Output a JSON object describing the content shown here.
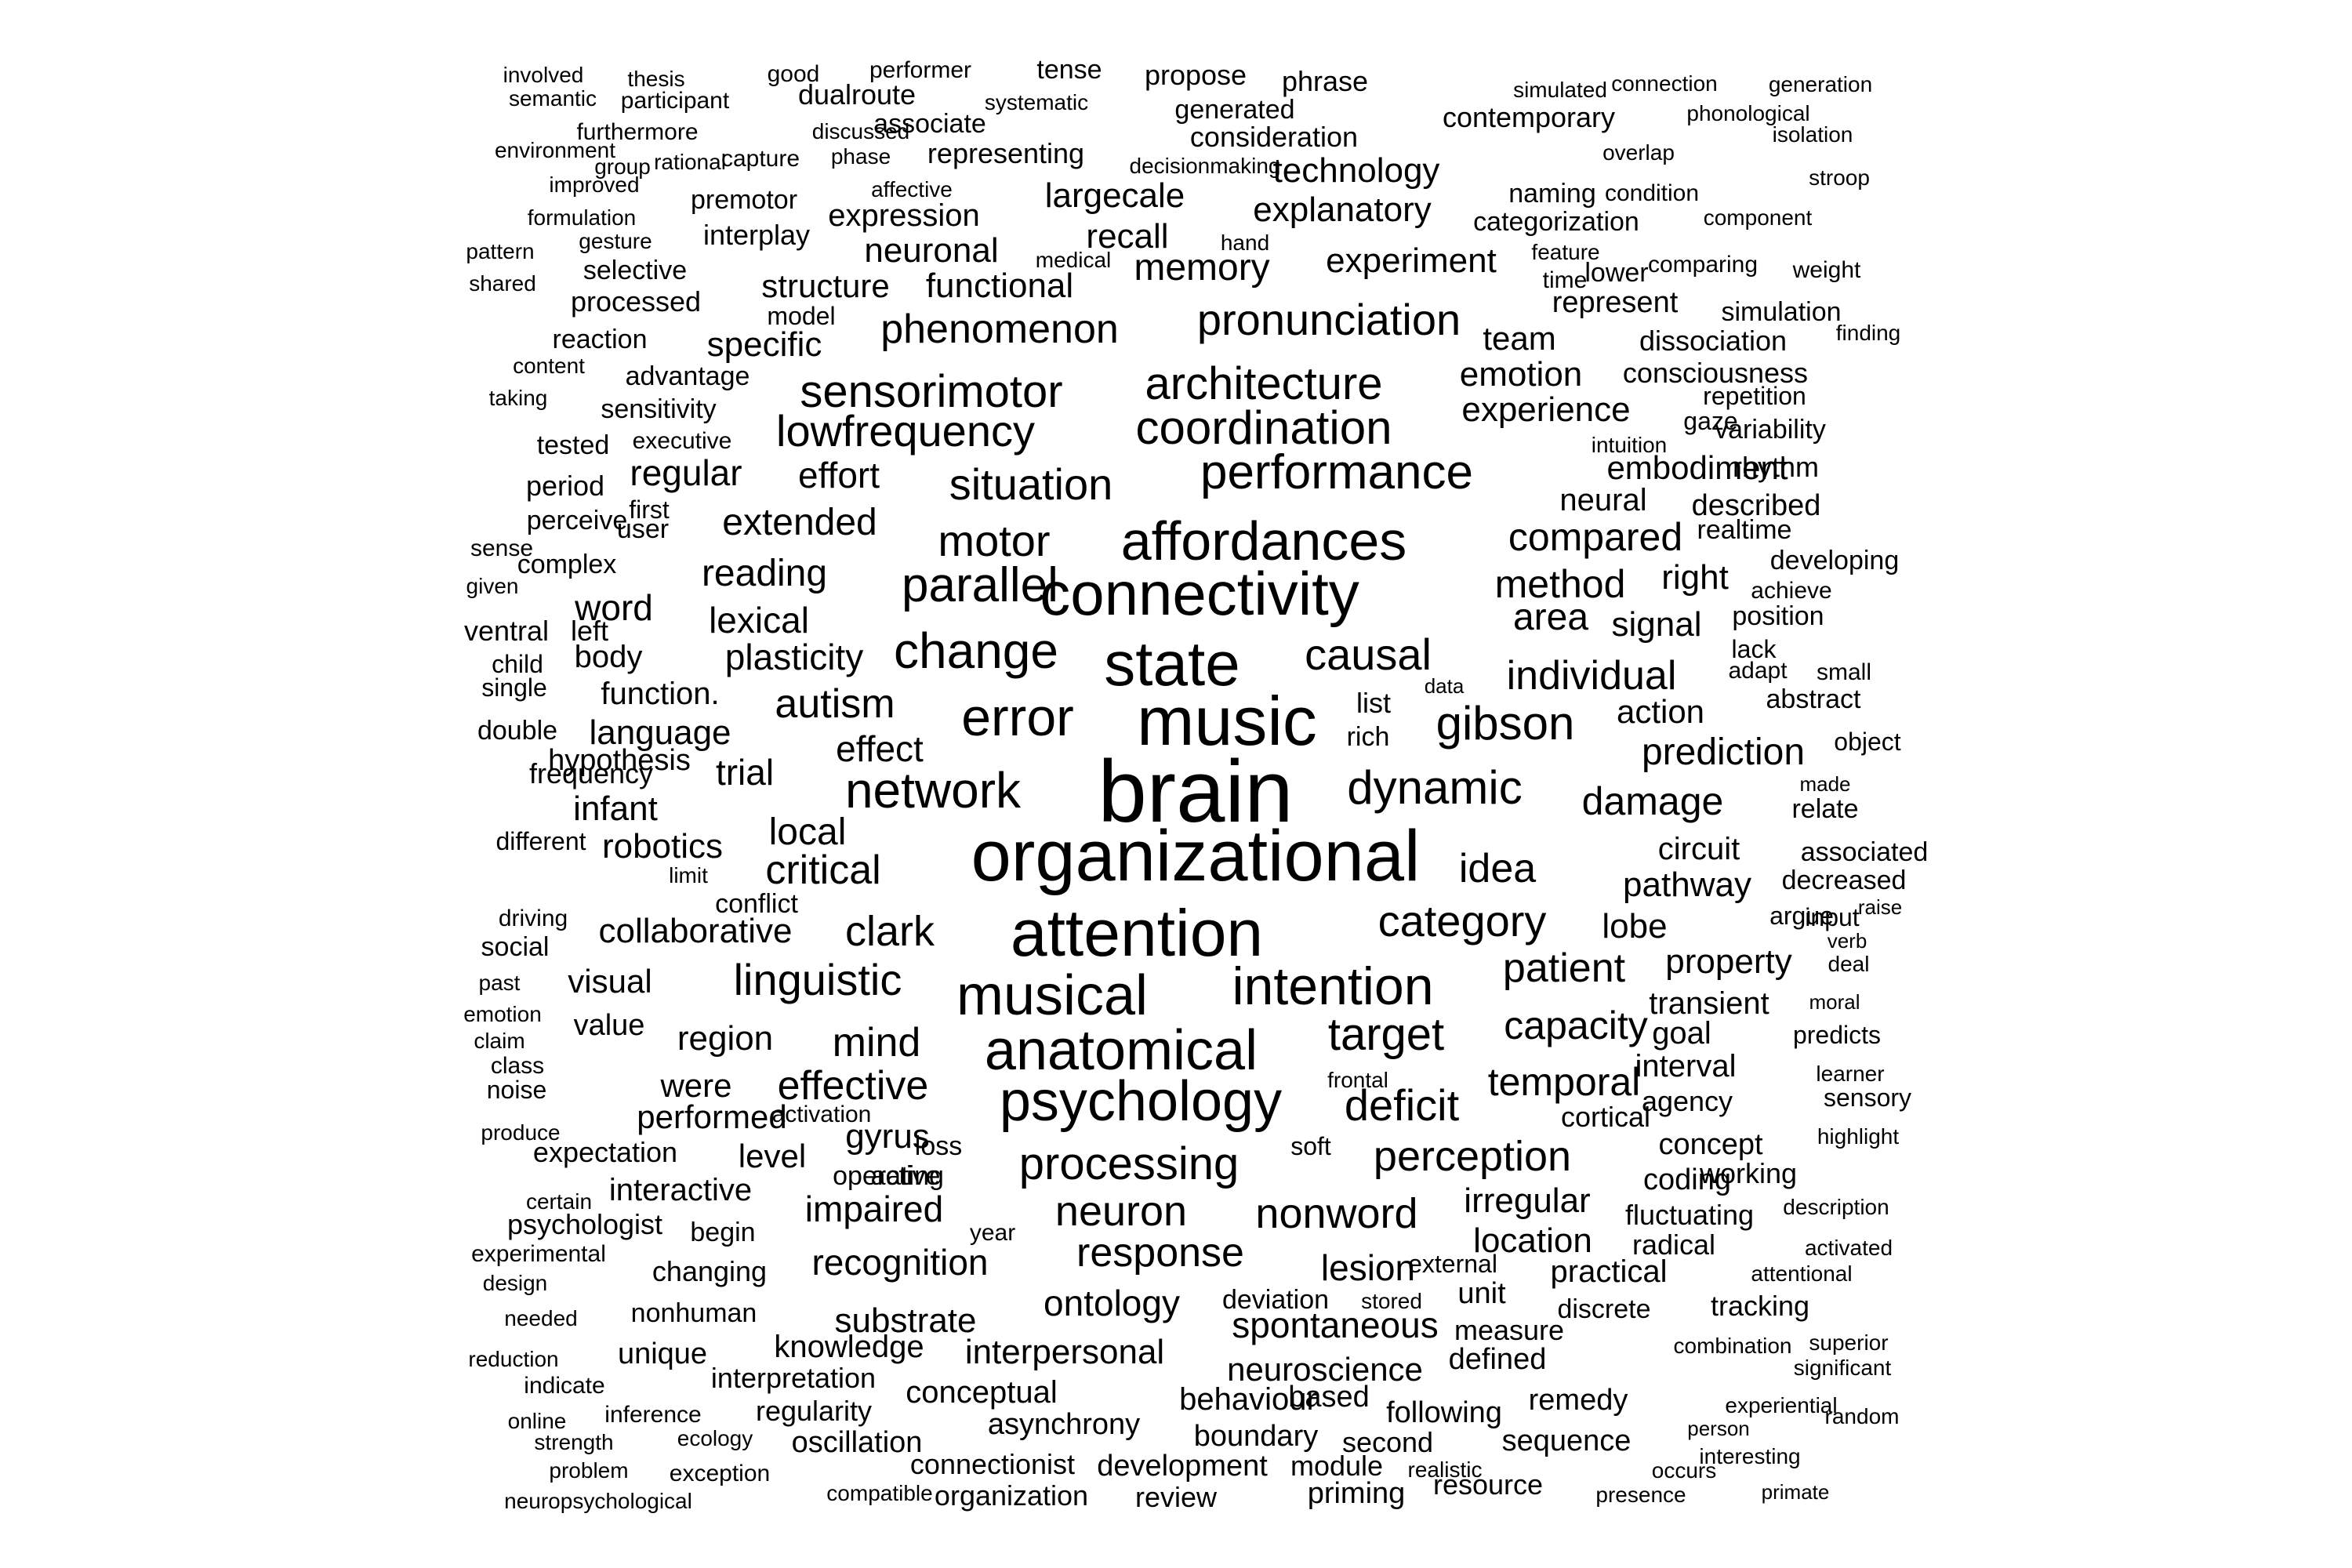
{
  "cloud": {
    "words": [
      "brain",
      "organizational",
      "attention",
      "music",
      "state",
      "connectivity",
      "affordances",
      "anatomical",
      "psychology",
      "musical",
      "error",
      "intention",
      "network",
      "parallel",
      "change",
      "performance",
      "coordination",
      "architecture",
      "pronunciation",
      "sensorimotor",
      "lowfrequency",
      "situation",
      "motor",
      "causal",
      "gibson",
      "dynamic",
      "category",
      "processing",
      "neuron",
      "response",
      "nonword",
      "perception",
      "target",
      "deficit",
      "temporal",
      "capacity",
      "patient",
      "individual",
      "compared",
      "method",
      "area",
      "damage",
      "idea",
      "prediction",
      "linguistic",
      "clark",
      "critical",
      "local",
      "autism",
      "mind",
      "effective",
      "region",
      "impaired",
      "recognition",
      "ontology",
      "spontaneous",
      "substrate",
      "interpersonal",
      "neuroscience",
      "phenomenon",
      "memory",
      "recall",
      "largecale",
      "explanatory",
      "technology",
      "experiment",
      "experience",
      "emotion",
      "embodiment",
      "neural",
      "signal",
      "right",
      "action",
      "pathway",
      "lobe",
      "property",
      "transient",
      "circuit",
      "goal",
      "interval",
      "agency",
      "concept",
      "coding",
      "working",
      "fluctuating",
      "location",
      "lesion",
      "irregular",
      "unit",
      "practical",
      "radical",
      "tracking",
      "measure",
      "defined",
      "remedy",
      "sequence",
      "following",
      "boundary",
      "based",
      "second",
      "priming",
      "resource",
      "module",
      "development",
      "review",
      "organization",
      "connectionist",
      "oscillation",
      "asynchrony",
      "behaviour",
      "conceptual",
      "knowledge",
      "interpretation",
      "regularity",
      "reading",
      "extended",
      "regular",
      "effort",
      "lexical",
      "plasticity",
      "trial",
      "effect",
      "word",
      "body",
      "function.",
      "language",
      "hypothesis",
      "infant",
      "robotics",
      "collaborative",
      "visual",
      "value",
      "were",
      "performed",
      "level",
      "gyrus",
      "expectation",
      "interactive",
      "begin",
      "changing",
      "nonhuman",
      "unique",
      "structure",
      "functional",
      "neuronal",
      "expression",
      "interplay",
      "specific",
      "model",
      "advantage",
      "sensitivity",
      "executive",
      "tested",
      "period",
      "user",
      "first",
      "complex",
      "perceive",
      "sense",
      "given",
      "left",
      "ventral",
      "child",
      "single",
      "double",
      "frequency",
      "different",
      "limit",
      "conflict",
      "driving",
      "social",
      "past",
      "emotion",
      "claim",
      "class",
      "noise",
      "produce",
      "activation",
      "active",
      "loss",
      "operating",
      "soft",
      "year",
      "frontal",
      "certain",
      "psychologist",
      "experimental",
      "design",
      "needed",
      "reduction",
      "indicate",
      "online",
      "inference",
      "ecology",
      "strength",
      "problem",
      "exception",
      "compatible",
      "neuropsychological",
      "realistic",
      "stored",
      "deviation",
      "external",
      "discrete",
      "cortical",
      "list",
      "rich",
      "data",
      "team",
      "represent",
      "dissociation",
      "consciousness",
      "repetition",
      "gaze",
      "intuition",
      "variability",
      "rhythm",
      "described",
      "realtime",
      "developing",
      "achieve",
      "position",
      "lack",
      "adapt",
      "small",
      "abstract",
      "object",
      "made",
      "relate",
      "associated",
      "decreased",
      "input",
      "argue",
      "raise",
      "verb",
      "deal",
      "moral",
      "predicts",
      "learner",
      "sensory",
      "highlight",
      "description",
      "activated",
      "attentional",
      "combination",
      "superior",
      "significant",
      "experiential",
      "random",
      "person",
      "interesting",
      "occurs",
      "presence",
      "primate",
      "simulation",
      "finding",
      "comparing",
      "weight",
      "lower",
      "time",
      "feature",
      "categorization",
      "component",
      "condition",
      "naming",
      "overlap",
      "contemporary",
      "phonological",
      "isolation",
      "stroop",
      "simulated",
      "connection",
      "generation",
      "propose",
      "phrase",
      "generated",
      "consideration",
      "decisionmaking",
      "hand",
      "medical",
      "tense",
      "performer",
      "good",
      "involved",
      "thesis",
      "semantic",
      "participant",
      "dualroute",
      "systematic",
      "discussed",
      "associate",
      "furthermore",
      "environment",
      "group",
      "rational",
      "capture",
      "phase",
      "representing",
      "improved",
      "affective",
      "premotor",
      "formulation",
      "gesture",
      "pattern",
      "shared",
      "selective",
      "processed",
      "reaction",
      "content",
      "taking"
    ]
  }
}
